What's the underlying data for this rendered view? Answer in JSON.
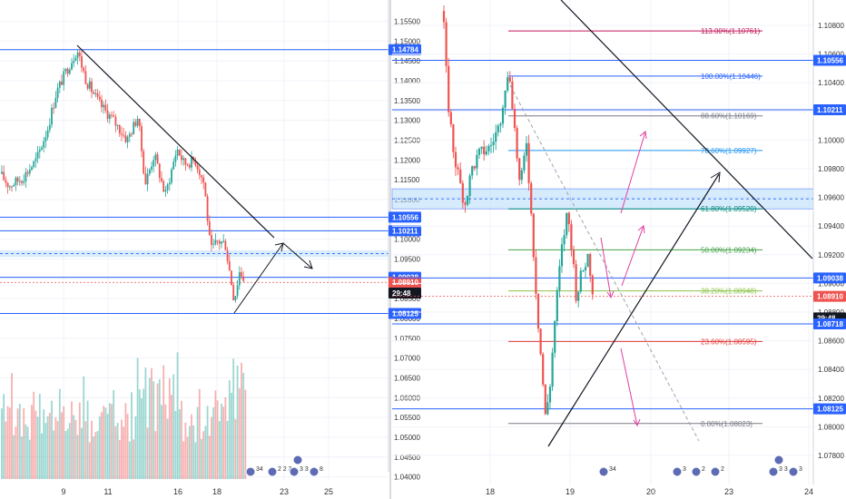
{
  "chart_data": [
    {
      "type": "candlestick",
      "panel": "left",
      "x_ticks": [
        "9",
        "11",
        "16",
        "18",
        "23",
        "25"
      ],
      "y_ticks": [
        "1.15500",
        "1.15000",
        "1.14500",
        "1.14000",
        "1.13500",
        "1.13000",
        "1.12500",
        "1.12000",
        "1.11500",
        "1.11000",
        "1.10500",
        "1.10000",
        "1.09500",
        "1.09000",
        "1.08500",
        "1.08000",
        "1.07500",
        "1.07000",
        "1.06500",
        "1.06000",
        "1.05500",
        "1.05000",
        "1.04500",
        "1.04000"
      ],
      "ylim": [
        1.039,
        1.159
      ],
      "price_tags": [
        {
          "text": "1.14784",
          "value": 1.14784,
          "color": "#2962ff"
        },
        {
          "text": "1.10556",
          "value": 1.10556,
          "color": "#2962ff"
        },
        {
          "text": "1.10211",
          "value": 1.10211,
          "color": "#2962ff"
        },
        {
          "text": "1.09038",
          "value": 1.09038,
          "color": "#2962ff"
        },
        {
          "text": "1.08910",
          "value": 1.0891,
          "color": "#ef5350"
        },
        {
          "text": "29:48",
          "value": 1.0864,
          "color": "#131722"
        },
        {
          "text": "1.08125",
          "value": 1.08125,
          "color": "#2962ff"
        }
      ],
      "horizontal_lines": [
        1.14784,
        1.10556,
        1.10211,
        1.09038,
        1.08125
      ],
      "zone": [
        1.0955,
        1.0972
      ],
      "trendline": {
        "from": [
          1.14784
        ],
        "to": [
          1.0965
        ]
      },
      "events": [
        "34",
        "2",
        "2",
        "3",
        "3",
        "3",
        "8"
      ]
    },
    {
      "type": "candlestick",
      "panel": "right",
      "x_ticks": [
        "18",
        "19",
        "20",
        "23",
        "24"
      ],
      "y_ticks": [
        "1.10800",
        "1.10600",
        "1.10400",
        "1.10200",
        "1.10000",
        "1.09800",
        "1.09600",
        "1.09400",
        "1.09200",
        "1.09000",
        "1.08800",
        "1.08600",
        "1.08400",
        "1.08200",
        "1.08000",
        "1.07800"
      ],
      "ylim": [
        1.0774,
        1.1094
      ],
      "price_tags": [
        {
          "text": "1.10556",
          "value": 1.10556,
          "color": "#2962ff"
        },
        {
          "text": "1.10211",
          "value": 1.10211,
          "color": "#2962ff"
        },
        {
          "text": "1.09038",
          "value": 1.09038,
          "color": "#2962ff"
        },
        {
          "text": "1.08910",
          "value": 1.0891,
          "color": "#ef5350"
        },
        {
          "text": "29:48",
          "value": 1.0876,
          "color": "#131722"
        },
        {
          "text": "1.08718",
          "value": 1.08718,
          "color": "#2962ff"
        },
        {
          "text": "1.08125",
          "value": 1.08125,
          "color": "#2962ff"
        }
      ],
      "fib_levels": [
        {
          "label": "113.00%(1.10761)",
          "value": 1.10761,
          "color": "#c2185b"
        },
        {
          "label": "100.00%(1.10446)",
          "value": 1.10446,
          "color": "#2962ff"
        },
        {
          "label": "88.60%(1.10169)",
          "value": 1.10169,
          "color": "#787b86"
        },
        {
          "label": "78.60%(1.09927)",
          "value": 1.09927,
          "color": "#2196f3"
        },
        {
          "label": "61.80%(1.09520)",
          "value": 1.0952,
          "color": "#00897b"
        },
        {
          "label": "50.00%(1.09234)",
          "value": 1.09234,
          "color": "#43a047"
        },
        {
          "label": "38.20%(1.08948)",
          "value": 1.08948,
          "color": "#8bc34a"
        },
        {
          "label": "23.60%(1.08595)",
          "value": 1.08595,
          "color": "#e53935"
        },
        {
          "label": "0.00%(1.08023)",
          "value": 1.08023,
          "color": "#787b86"
        }
      ],
      "zone": [
        1.0952,
        1.0966
      ],
      "events": [
        "34",
        "3",
        "2",
        "2",
        "3",
        "3",
        "3"
      ]
    }
  ]
}
